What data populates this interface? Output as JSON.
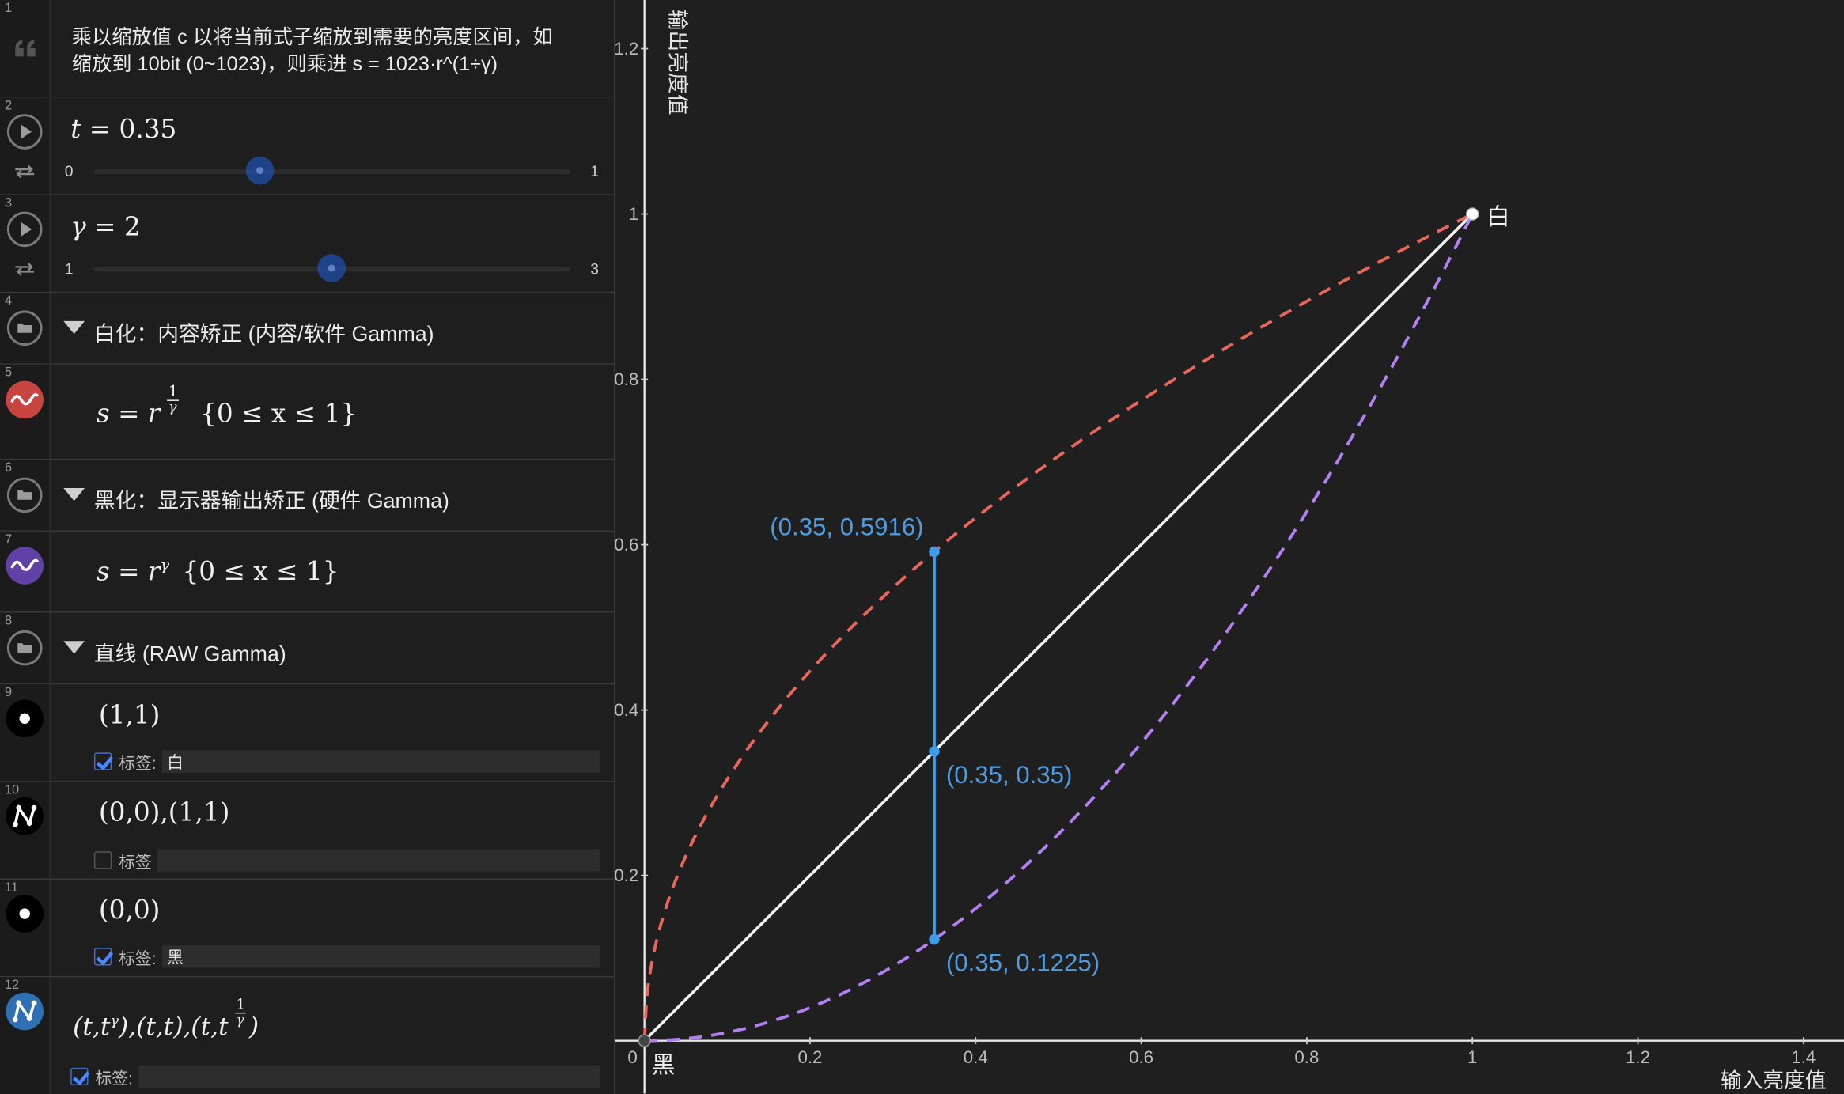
{
  "rows": [
    {
      "num": "1",
      "text_line1": "乘以缩放值 c 以将当前式子缩放到需要的亮度区间，如",
      "text_line2": "缩放到 10bit (0~1023)，则乘进 s = 1023·r^(1÷γ)",
      "icon": "quote-icon"
    },
    {
      "num": "2",
      "var": "t",
      "value": "= 0.35",
      "slider_min": "0",
      "slider_max": "1",
      "slider_value": 0.35,
      "icon": "play-icon",
      "icon2": "loop-icon"
    },
    {
      "num": "3",
      "var": "γ",
      "value": "= 2",
      "slider_min": "1",
      "slider_max": "3",
      "slider_value": 2,
      "icon": "play-icon",
      "icon2": "loop-icon"
    },
    {
      "num": "4",
      "title": "白化：内容矫正 (内容/软件 Gamma)",
      "icon": "folder-icon"
    },
    {
      "num": "5",
      "expr_lhs": "s = r",
      "expr_exp_num": "1",
      "expr_exp_den": "γ",
      "expr_domain": "{0 ≤ x ≤ 1}",
      "color": "#c74440",
      "icon": "red-wave-icon"
    },
    {
      "num": "6",
      "title": "黑化：显示器输出矫正 (硬件 Gamma)",
      "icon": "folder-icon"
    },
    {
      "num": "7",
      "expr_lhs": "s = r",
      "expr_exp": "γ",
      "expr_domain": "{0 ≤ x ≤ 1}",
      "color": "#6042a6",
      "icon": "purple-wave-icon"
    },
    {
      "num": "8",
      "title": "直线 (RAW Gamma)",
      "icon": "folder-icon"
    },
    {
      "num": "9",
      "expr": "(1,1)",
      "label_prefix": "标签:",
      "label_value": "白",
      "label_checked": true,
      "icon": "point-icon"
    },
    {
      "num": "10",
      "expr": "(0,0),(1,1)",
      "label_prefix": "标签",
      "label_value": "",
      "label_checked": false,
      "icon": "polyline-icon"
    },
    {
      "num": "11",
      "expr": "(0,0)",
      "label_prefix": "标签:",
      "label_value": "黑",
      "label_checked": true,
      "icon": "point-icon"
    },
    {
      "num": "12",
      "expr_a": "(t,t",
      "expr_a_exp": "γ",
      "expr_b": "),(t,t),(t,t",
      "expr_c_num": "1",
      "expr_c_den": "γ",
      "expr_d": ")",
      "label_prefix": "标签:",
      "label_value": "",
      "label_checked": true,
      "icon": "blue-polyline-icon"
    }
  ],
  "graph": {
    "xlabel": "输入亮度值",
    "ylabel": "输出亮度值",
    "x_ticks": [
      "0",
      "0.2",
      "0.4",
      "0.6",
      "0.8",
      "1",
      "1.2",
      "1.4"
    ],
    "y_ticks": [
      "0.2",
      "0.4",
      "0.6",
      "0.8",
      "1",
      "1.2"
    ],
    "xlim": [
      0,
      1.4
    ],
    "ylim": [
      0,
      1.25
    ],
    "white_label": "白",
    "black_label": "黑",
    "t": 0.35,
    "gamma": 2,
    "point_labels": [
      "(0.35, 0.5916)",
      "(0.35, 0.35)",
      "(0.35, 0.1225)"
    ],
    "colors": {
      "red": "#e8675c",
      "purple": "#b280f0",
      "white": "#f2f2f2",
      "blue": "#3d9de8",
      "label_blue": "#4e9be0"
    }
  }
}
